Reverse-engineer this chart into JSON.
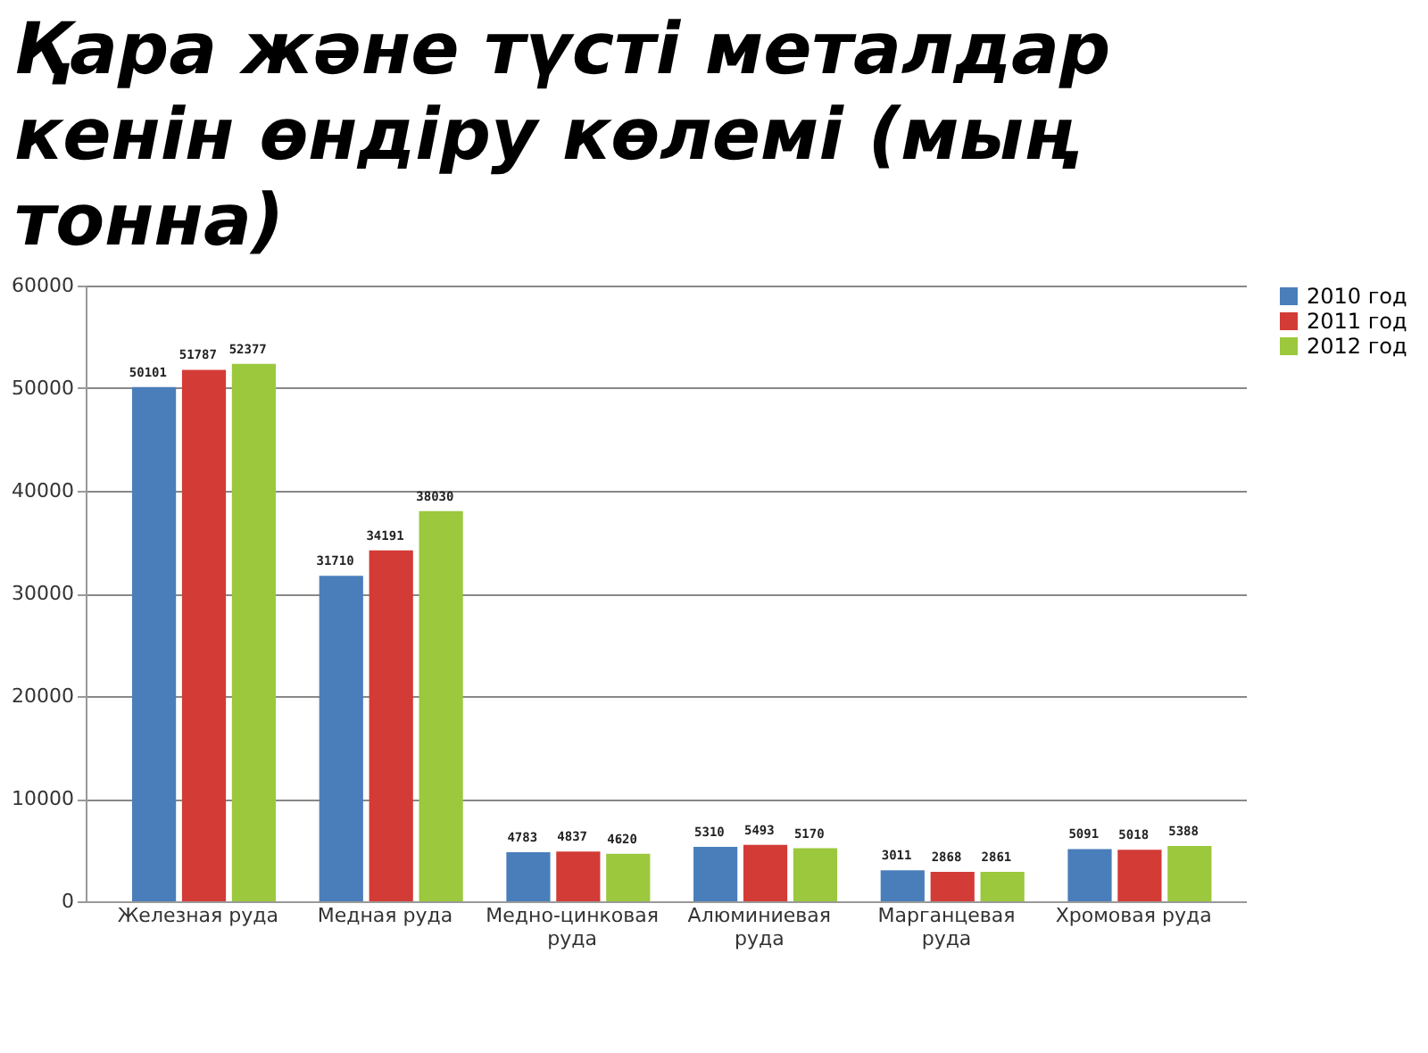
{
  "chart_data": {
    "type": "bar",
    "title": "Қара және түсті металдар кенін өндіру көлемі (мың тонна)",
    "categories": [
      "Железная руда",
      "Медная руда",
      "Медно-цинковая руда",
      "Алюминиевая руда",
      "Марганцевая руда",
      "Хромовая руда"
    ],
    "series": [
      {
        "name": "2010 год",
        "color": "#4a7ebb",
        "values": [
          50101,
          31710,
          4783,
          5310,
          3011,
          5091
        ]
      },
      {
        "name": "2011 год",
        "color": "#d33b36",
        "values": [
          51787,
          34191,
          4837,
          5493,
          2868,
          5018
        ]
      },
      {
        "name": "2012 год",
        "color": "#9bc83c",
        "values": [
          52377,
          38030,
          4620,
          5170,
          2861,
          5388
        ]
      }
    ],
    "ylim": [
      0,
      60000
    ],
    "yticks": [
      0,
      10000,
      20000,
      30000,
      40000,
      50000,
      60000
    ],
    "grid": "y",
    "legend": "right",
    "data_labels": true
  }
}
